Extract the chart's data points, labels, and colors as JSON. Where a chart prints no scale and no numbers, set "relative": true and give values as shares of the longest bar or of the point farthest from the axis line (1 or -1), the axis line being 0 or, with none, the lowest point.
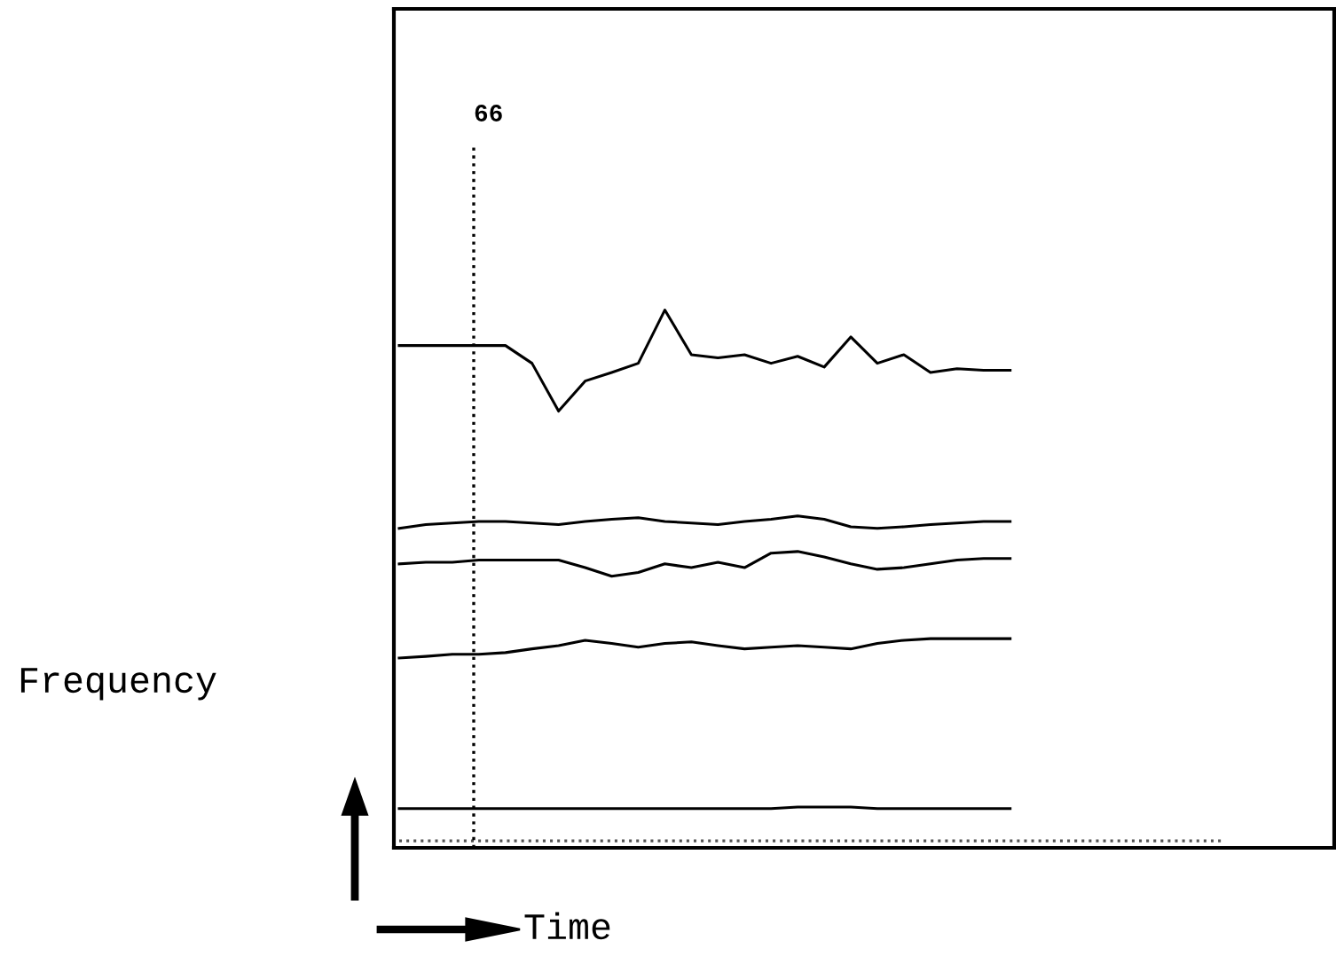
{
  "chart_data": {
    "type": "line",
    "relative": true,
    "xlabel": "Time",
    "ylabel": "Frequency",
    "categories": [
      null,
      null,
      null,
      null,
      null,
      null,
      null,
      null,
      null,
      null,
      null,
      null,
      null,
      null,
      null,
      null,
      null,
      null,
      null,
      null,
      null,
      null,
      null,
      null,
      null,
      null,
      null,
      null,
      null,
      null,
      null,
      null,
      null,
      null,
      null,
      null
    ],
    "series": [
      {
        "color": "#000000",
        "values": [
          0.934,
          0.934,
          0.934,
          0.934,
          0.934,
          0.901,
          0.812,
          0.868,
          0.884,
          0.901,
          1.0,
          0.917,
          0.911,
          0.917,
          0.901,
          0.914,
          0.894,
          0.95,
          0.901,
          0.917,
          0.884,
          0.891,
          0.888,
          0.888,
          null,
          null,
          null,
          null,
          null,
          null,
          null,
          null,
          null,
          null,
          null,
          null
        ]
      },
      {
        "color": "#000000",
        "values": [
          0.594,
          0.601,
          0.604,
          0.607,
          0.607,
          0.604,
          0.601,
          0.607,
          0.611,
          0.614,
          0.607,
          0.604,
          0.601,
          0.607,
          0.611,
          0.617,
          0.611,
          0.597,
          0.594,
          0.597,
          0.601,
          0.604,
          0.607,
          0.607,
          null,
          null,
          null,
          null,
          null,
          null,
          null,
          null,
          null,
          null,
          null,
          null
        ]
      },
      {
        "color": "#000000",
        "values": [
          0.528,
          0.531,
          0.531,
          0.535,
          0.535,
          0.535,
          0.535,
          0.521,
          0.505,
          0.512,
          0.528,
          0.521,
          0.531,
          0.521,
          0.548,
          0.551,
          0.541,
          0.528,
          0.518,
          0.521,
          0.528,
          0.535,
          0.538,
          0.538,
          null,
          null,
          null,
          null,
          null,
          null,
          null,
          null,
          null,
          null,
          null,
          null
        ]
      },
      {
        "color": "#000000",
        "values": [
          0.353,
          0.356,
          0.36,
          0.36,
          0.363,
          0.37,
          0.376,
          0.386,
          0.38,
          0.373,
          0.38,
          0.383,
          0.376,
          0.37,
          0.373,
          0.376,
          0.373,
          0.37,
          0.38,
          0.386,
          0.389,
          0.389,
          0.389,
          0.389,
          null,
          null,
          null,
          null,
          null,
          null,
          null,
          null,
          null,
          null,
          null,
          null
        ]
      },
      {
        "color": "#000000",
        "values": [
          0.073,
          0.073,
          0.073,
          0.073,
          0.073,
          0.073,
          0.073,
          0.073,
          0.073,
          0.073,
          0.073,
          0.073,
          0.073,
          0.073,
          0.073,
          0.076,
          0.076,
          0.076,
          0.073,
          0.073,
          0.073,
          0.073,
          0.073,
          0.073,
          null,
          null,
          null,
          null,
          null,
          null,
          null,
          null,
          null,
          null,
          null,
          null
        ]
      },
      {
        "color": "#555555",
        "line_style": "dotted",
        "values": [
          0.013,
          0.013,
          0.013,
          0.013,
          0.013,
          0.013,
          0.013,
          0.013,
          0.013,
          0.013,
          0.013,
          0.013,
          0.013,
          0.013,
          0.013,
          0.013,
          0.013,
          0.013,
          0.013,
          0.013,
          0.013,
          0.013,
          0.013,
          0.013,
          0.013,
          0.013,
          0.013,
          0.013,
          0.013,
          0.013,
          0.013,
          0.013,
          null,
          null,
          null,
          null
        ]
      }
    ],
    "annotations": [
      "66"
    ]
  }
}
